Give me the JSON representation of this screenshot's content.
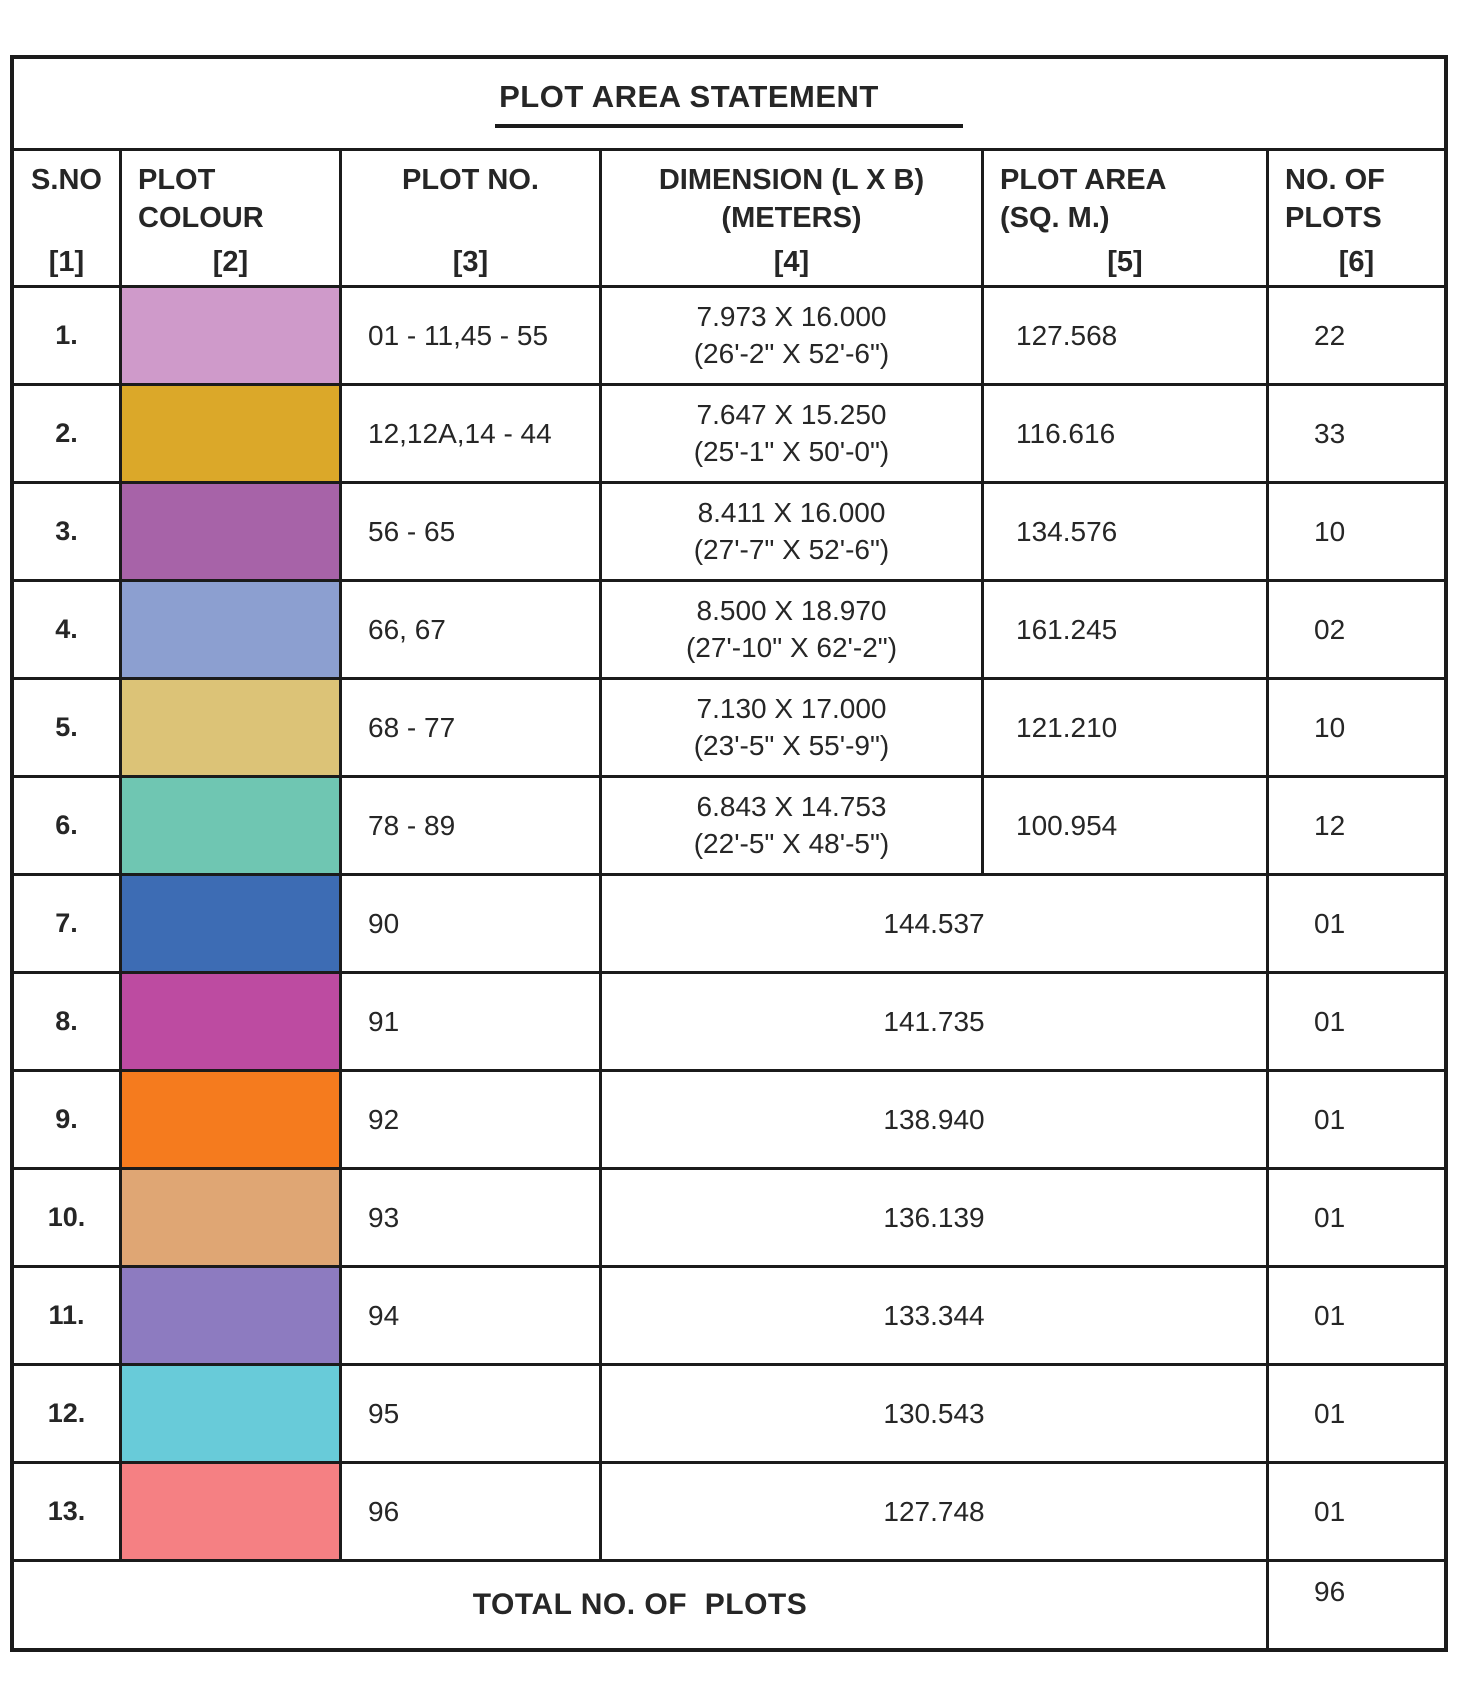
{
  "title": "PLOT AREA STATEMENT",
  "header": {
    "col1": {
      "label": "S.NO",
      "index": "[1]"
    },
    "col2": {
      "label_line1": "PLOT",
      "label_line2": "COLOUR",
      "index": "[2]"
    },
    "col3": {
      "label": "PLOT NO.",
      "index": "[3]"
    },
    "col4": {
      "label_line1": "DIMENSION (L X B)",
      "label_line2": "(METERS)",
      "index": "[4]"
    },
    "col5": {
      "label_line1": "PLOT AREA",
      "label_line2": "(SQ. M.)",
      "index": "[5]"
    },
    "col6": {
      "label_line1": "NO. OF",
      "label_line2": "PLOTS",
      "index": "[6]"
    }
  },
  "rows": [
    {
      "sno": "1.",
      "color": "#cf9aca",
      "plot_no": "01 - 11,45 - 55",
      "dim_m": "7.973 X 16.000",
      "dim_ft": "(26'-2\" X 52'-6\")",
      "area": "127.568",
      "count": "22"
    },
    {
      "sno": "2.",
      "color": "#dba829",
      "plot_no": "12,12A,14 - 44",
      "dim_m": "7.647 X 15.250",
      "dim_ft": "(25'-1\" X 50'-0\")",
      "area": "116.616",
      "count": "33"
    },
    {
      "sno": "3.",
      "color": "#a763a8",
      "plot_no": "56 - 65",
      "dim_m": "8.411 X 16.000",
      "dim_ft": "(27'-7\" X 52'-6\")",
      "area": "134.576",
      "count": "10"
    },
    {
      "sno": "4.",
      "color": "#8c9fd0",
      "plot_no": "66, 67",
      "dim_m": "8.500 X 18.970",
      "dim_ft": "(27'-10\" X 62'-2\")",
      "area": "161.245",
      "count": "02"
    },
    {
      "sno": "5.",
      "color": "#dcc377",
      "plot_no": "68 - 77",
      "dim_m": "7.130 X 17.000",
      "dim_ft": "(23'-5\" X 55'-9\")",
      "area": "121.210",
      "count": "10"
    },
    {
      "sno": "6.",
      "color": "#6fc6b2",
      "plot_no": "78 - 89",
      "dim_m": "6.843 X 14.753",
      "dim_ft": "(22'-5\" X 48'-5\")",
      "area": "100.954",
      "count": "12"
    },
    {
      "sno": "7.",
      "color": "#3d6cb4",
      "plot_no": "90",
      "area": "144.537",
      "count": "01"
    },
    {
      "sno": "8.",
      "color": "#bd4ba1",
      "plot_no": "91",
      "area": "141.735",
      "count": "01"
    },
    {
      "sno": "9.",
      "color": "#f57b1e",
      "plot_no": "92",
      "area": "138.940",
      "count": "01"
    },
    {
      "sno": "10.",
      "color": "#dfa674",
      "plot_no": "93",
      "area": "136.139",
      "count": "01"
    },
    {
      "sno": "11.",
      "color": "#8d7bc0",
      "plot_no": "94",
      "area": "133.344",
      "count": "01"
    },
    {
      "sno": "12.",
      "color": "#68cbd9",
      "plot_no": "95",
      "area": "130.543",
      "count": "01"
    },
    {
      "sno": "13.",
      "color": "#f58083",
      "plot_no": "96",
      "area": "127.748",
      "count": "01"
    }
  ],
  "total": {
    "label": "TOTAL NO. OF  PLOTS",
    "value": "96"
  }
}
